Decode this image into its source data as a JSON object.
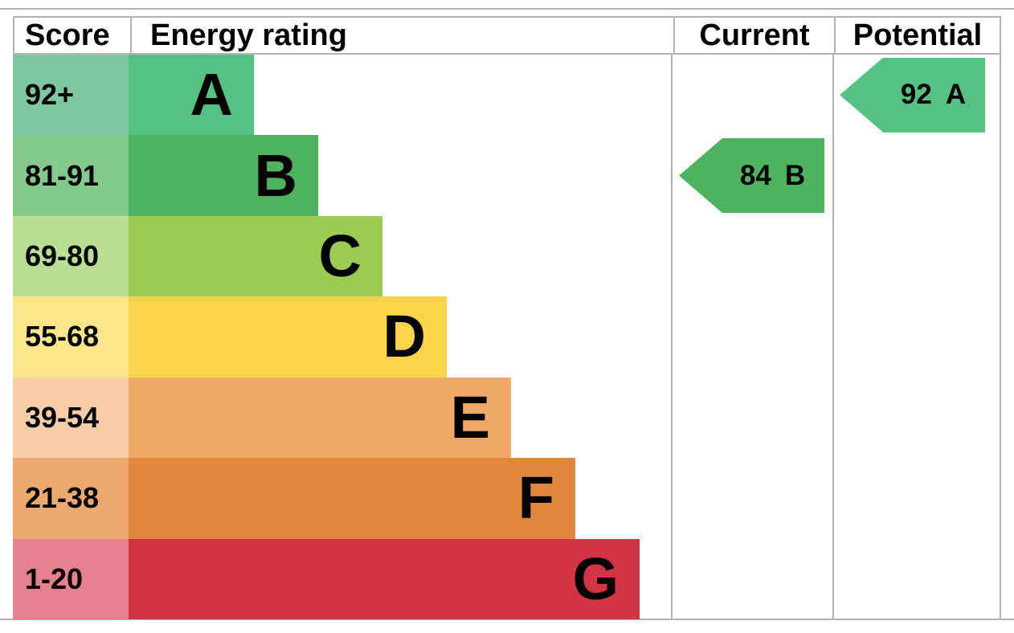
{
  "title": "Energy efficiency rating chart",
  "header": {
    "score": "Score",
    "energy_rating": "Energy rating",
    "current": "Current",
    "potential": "Potential"
  },
  "colors": {
    "border": "#b1b4b6",
    "text": "#000000",
    "background": "#ffffff"
  },
  "chart_data": {
    "type": "bar",
    "title": "EPC energy efficiency rating chart",
    "categories": [
      "A",
      "B",
      "C",
      "D",
      "E",
      "F",
      "G"
    ],
    "bands": [
      {
        "letter": "A",
        "score_range": "92+",
        "bar_color": "#55c283",
        "score_cell_color": "#7ec7a1"
      },
      {
        "letter": "B",
        "score_range": "81-91",
        "bar_color": "#4eb25e",
        "score_cell_color": "#85c98d"
      },
      {
        "letter": "C",
        "score_range": "69-80",
        "bar_color": "#9ccb52",
        "score_cell_color": "#bade94"
      },
      {
        "letter": "D",
        "score_range": "55-68",
        "bar_color": "#f8d44b",
        "score_cell_color": "#fae58a"
      },
      {
        "letter": "E",
        "score_range": "39-54",
        "bar_color": "#f0a868",
        "score_cell_color": "#f6cda7"
      },
      {
        "letter": "F",
        "score_range": "21-38",
        "bar_color": "#e1873d",
        "score_cell_color": "#eba96e"
      },
      {
        "letter": "G",
        "score_range": "1-20",
        "bar_color": "#d33443",
        "score_cell_color": "#e5808d"
      }
    ],
    "current": {
      "value": "84",
      "letter": "B",
      "band_index": 1,
      "color": "#4eb25e"
    },
    "potential": {
      "value": "92",
      "letter": "A",
      "band_index": 0,
      "color": "#55c283"
    }
  }
}
